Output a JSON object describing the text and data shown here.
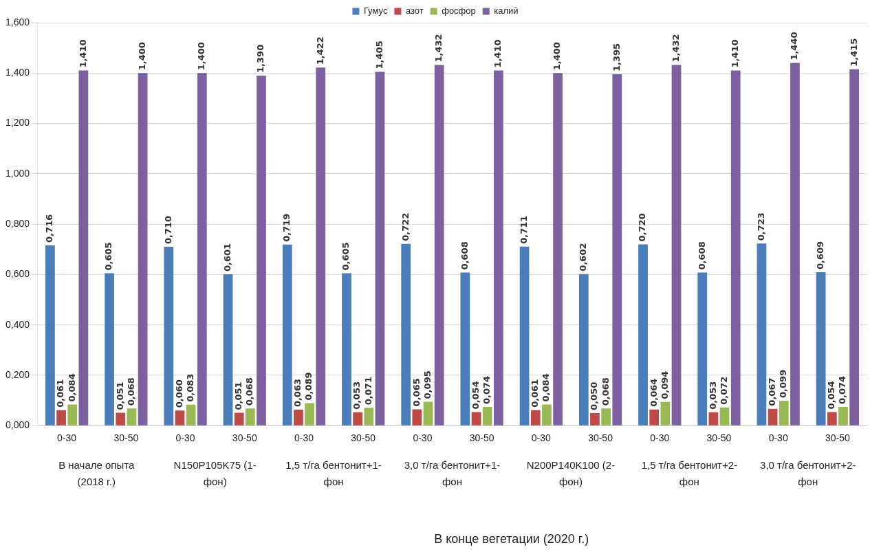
{
  "chart_data": {
    "type": "bar",
    "categories": [
      "0-30",
      "30-50",
      "0-30",
      "30-50",
      "0-30",
      "30-50",
      "0-30",
      "30-50",
      "0-30",
      "30-50",
      "0-30",
      "30-50",
      "0-30",
      "30-50"
    ],
    "series": [
      {
        "name": "Гумус",
        "color": "#4a7ebb",
        "values": [
          0.716,
          0.605,
          0.71,
          0.601,
          0.719,
          0.605,
          0.722,
          0.608,
          0.711,
          0.602,
          0.72,
          0.608,
          0.723,
          0.609
        ],
        "value_labels": [
          "0,716",
          "0,605",
          "0,710",
          "0,601",
          "0,719",
          "0,605",
          "0,722",
          "0,608",
          "0,711",
          "0,602",
          "0,720",
          "0,608",
          "0,723",
          "0,609"
        ]
      },
      {
        "name": "азот",
        "color": "#be4b48",
        "values": [
          0.061,
          0.051,
          0.06,
          0.051,
          0.063,
          0.053,
          0.065,
          0.054,
          0.061,
          0.05,
          0.064,
          0.053,
          0.067,
          0.054
        ],
        "value_labels": [
          "0,061",
          "0,051",
          "0,060",
          "0,051",
          "0,063",
          "0,053",
          "0,065",
          "0,054",
          "0,061",
          "0,050",
          "0,064",
          "0,053",
          "0,067",
          "0,054"
        ]
      },
      {
        "name": "фосфор",
        "color": "#98b954",
        "values": [
          0.084,
          0.068,
          0.083,
          0.068,
          0.089,
          0.071,
          0.095,
          0.074,
          0.084,
          0.068,
          0.094,
          0.072,
          0.099,
          0.074
        ],
        "value_labels": [
          "0,084",
          "0,068",
          "0,083",
          "0,068",
          "0,089",
          "0,071",
          "0,095",
          "0,074",
          "0,084",
          "0,068",
          "0,094",
          "0,072",
          "0,099",
          "0,074"
        ]
      },
      {
        "name": "калий",
        "color": "#7d60a0",
        "values": [
          1.41,
          1.4,
          1.4,
          1.39,
          1.422,
          1.405,
          1.432,
          1.41,
          1.4,
          1.395,
          1.432,
          1.41,
          1.44,
          1.415
        ],
        "value_labels": [
          "1,410",
          "1,400",
          "1,400",
          "1,390",
          "1,422",
          "1,405",
          "1,432",
          "1,410",
          "1,400",
          "1,395",
          "1,432",
          "1,410",
          "1,440",
          "1,415"
        ]
      }
    ],
    "ylim": [
      0,
      1.6
    ],
    "yticks": [
      {
        "value": 0,
        "label": "0,000"
      },
      {
        "value": 0.2,
        "label": "0,200"
      },
      {
        "value": 0.4,
        "label": "0,400"
      },
      {
        "value": 0.6,
        "label": "0,600"
      },
      {
        "value": 0.8,
        "label": "0,800"
      },
      {
        "value": 1,
        "label": "1,000"
      },
      {
        "value": 1.2,
        "label": "1,200"
      },
      {
        "value": 1.4,
        "label": "1,400"
      },
      {
        "value": 1.6,
        "label": "1,600"
      }
    ],
    "grid": "y",
    "legend": "top",
    "annotations": [
      "В начале опыта (2018 г.)",
      "N150P105K75 (1-фон)",
      "1,5 т/га бентонит+1-фон",
      "3,0 т/га бентонит+1-фон",
      "N200P140K100 (2-фон)",
      "1,5 т/га бентонит+2-фон",
      "3,0 т/га бентонит+2-фон",
      "В конце вегетации (2020 г.)"
    ]
  }
}
